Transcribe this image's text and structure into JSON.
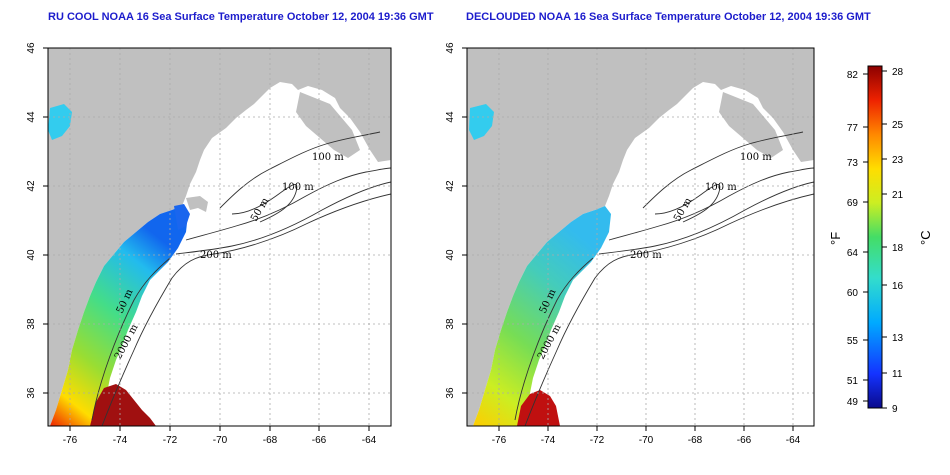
{
  "panels": [
    {
      "id": "left",
      "title": "RU COOL NOAA 16 Sea Surface Temperature October 12, 2004 19:36 GMT",
      "contour_labels": [
        "100 m",
        "100 m",
        "50 m",
        "200 m",
        "50 m",
        "2000 m"
      ]
    },
    {
      "id": "right",
      "title": "DECLOUDED NOAA 16 Sea Surface Temperature October 12, 2004 19:36 GMT",
      "contour_labels": [
        "100 m",
        "100 m",
        "50 m",
        "200 m",
        "50 m",
        "2000 m"
      ]
    }
  ],
  "axes": {
    "lon_ticks": [
      "-76",
      "-74",
      "-72",
      "-70",
      "-68",
      "-66",
      "-64"
    ],
    "lat_ticks": [
      "46",
      "44",
      "42",
      "40",
      "38",
      "36"
    ]
  },
  "colorbar": {
    "fahrenheit_ticks": [
      "82",
      "77",
      "73",
      "69",
      "64",
      "60",
      "55",
      "51",
      "49"
    ],
    "celsius_ticks": [
      "28",
      "25",
      "23",
      "21",
      "18",
      "16",
      "13",
      "11",
      "9"
    ],
    "f_unit": "°F",
    "c_unit": "°C",
    "colors": [
      "#0a0a8c",
      "#1433ff",
      "#00aaff",
      "#33ddcc",
      "#44dd66",
      "#ccee22",
      "#ffdd00",
      "#ff8800",
      "#ee2200",
      "#8c0000"
    ]
  },
  "colors": {
    "land": "#c0c0c0",
    "ocean": "#ffffff",
    "grid": "#b0b0b0",
    "title": "#1c1ccc"
  }
}
